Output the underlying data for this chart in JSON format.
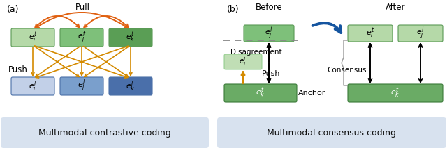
{
  "fig_width": 6.4,
  "fig_height": 2.13,
  "dpi": 100,
  "bg_color": "#ffffff",
  "label_a": "(a)",
  "label_b": "(b)",
  "caption_a": "Multimodal contrastive coding",
  "caption_b": "Multimodal consensus coding",
  "caption_bg": "#d8e2ef",
  "caption_color": "#111111",
  "pull_label": "Pull",
  "push_label_a": "Push",
  "push_label_b": "Push",
  "disagreement_label": "Disagreement",
  "consensus_label": "Consensus",
  "anchor_label": "Anchor",
  "before_label": "Before",
  "after_label": "After",
  "green_light": "#b5d9a8",
  "green_mid": "#7ec07a",
  "green_dark": "#5a9e55",
  "green_anchor": "#6aab65",
  "blue_light": "#c2d0e8",
  "blue_mid": "#7a9fcc",
  "blue_dark": "#4a6faa",
  "orange": "#d48a00",
  "red_orange": "#e06010",
  "arrow_blue": "#1555a0",
  "black": "#111111",
  "gray": "#888888"
}
